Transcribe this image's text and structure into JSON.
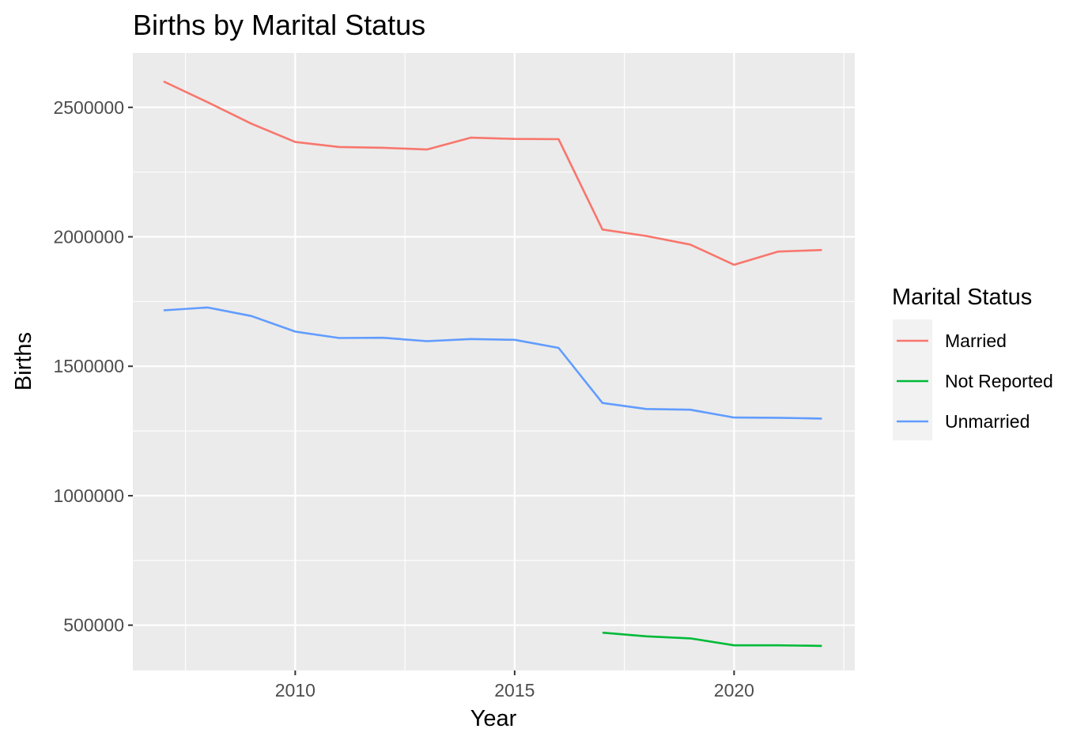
{
  "chart_data": {
    "type": "line",
    "title": "Births by Marital Status",
    "xlabel": "Year",
    "ylabel": "Births",
    "xlim": [
      2006.3,
      2022.75
    ],
    "ylim": [
      325000,
      2710000
    ],
    "x_ticks": [
      2010,
      2015,
      2020
    ],
    "x_minor": [
      2007.5,
      2012.5,
      2017.5,
      2022.5
    ],
    "y_ticks": [
      500000,
      1000000,
      1500000,
      2000000,
      2500000
    ],
    "y_minor": [
      750000,
      1250000,
      1750000,
      2250000
    ],
    "grid": true,
    "legend": {
      "title": "Marital Status",
      "position": "right"
    },
    "series": [
      {
        "name": "Married",
        "color": "#F8766D",
        "x": [
          2007,
          2008,
          2009,
          2010,
          2011,
          2012,
          2013,
          2014,
          2015,
          2016,
          2017,
          2018,
          2019,
          2020,
          2021,
          2022
        ],
        "y": [
          2600000,
          2520000,
          2437000,
          2366000,
          2347000,
          2344000,
          2337000,
          2383000,
          2378000,
          2377000,
          2028000,
          2003000,
          1970000,
          1892000,
          1943000,
          1949000
        ]
      },
      {
        "name": "Not Reported",
        "color": "#00BA38",
        "x": [
          2017,
          2018,
          2019,
          2020,
          2021,
          2022
        ],
        "y": [
          471000,
          457000,
          449000,
          422000,
          422000,
          420000
        ]
      },
      {
        "name": "Unmarried",
        "color": "#619CFF",
        "x": [
          2007,
          2008,
          2009,
          2010,
          2011,
          2012,
          2013,
          2014,
          2015,
          2016,
          2017,
          2018,
          2019,
          2020,
          2021,
          2022
        ],
        "y": [
          1716000,
          1727000,
          1694000,
          1634000,
          1609000,
          1610000,
          1597000,
          1605000,
          1602000,
          1571000,
          1358000,
          1335000,
          1332000,
          1302000,
          1301000,
          1298000
        ]
      }
    ]
  }
}
